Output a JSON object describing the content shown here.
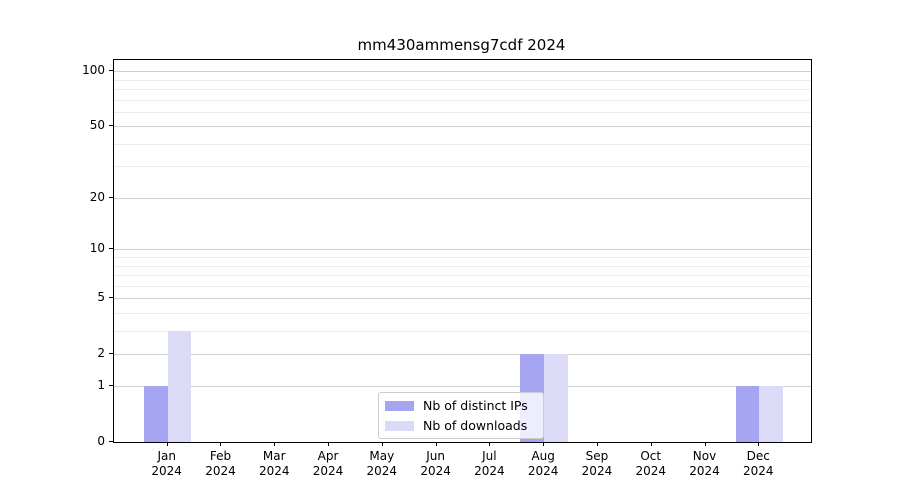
{
  "chart_data": {
    "type": "bar",
    "title": "mm430ammensg7cdf 2024",
    "categories": [
      "Jan 2024",
      "Feb 2024",
      "Mar 2024",
      "Apr 2024",
      "May 2024",
      "Jun 2024",
      "Jul 2024",
      "Aug 2024",
      "Sep 2024",
      "Oct 2024",
      "Nov 2024",
      "Dec 2024"
    ],
    "series": [
      {
        "name": "Nb of distinct IPs",
        "color": "#a5a5f2",
        "values": [
          1,
          0,
          0,
          0,
          0,
          0,
          0,
          2,
          0,
          0,
          0,
          1
        ]
      },
      {
        "name": "Nb of downloads",
        "color": "#dbdbf7",
        "values": [
          3,
          0,
          0,
          0,
          0,
          0,
          0,
          2,
          0,
          0,
          0,
          1
        ]
      }
    ],
    "y_axis": {
      "scale": "log1p",
      "major_ticks": [
        0,
        1,
        2,
        5,
        10,
        20,
        50,
        100
      ],
      "minor_ticks": [
        3,
        4,
        6,
        7,
        8,
        9,
        30,
        40,
        60,
        70,
        80,
        90
      ],
      "max_tick": 100
    },
    "xlabel": "",
    "ylabel": "",
    "grid": true,
    "legend_position": "lower center"
  }
}
